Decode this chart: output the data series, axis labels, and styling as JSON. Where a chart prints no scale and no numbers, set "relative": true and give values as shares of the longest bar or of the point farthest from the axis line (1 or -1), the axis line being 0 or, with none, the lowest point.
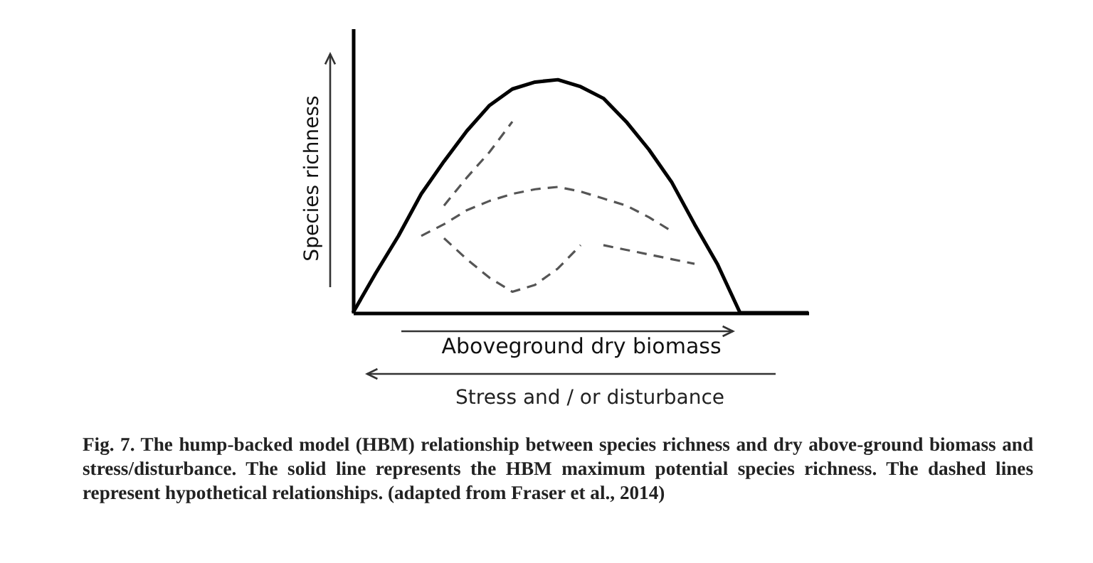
{
  "chart_data": {
    "type": "line",
    "relative": true,
    "xlabel": "Aboveground dry biomass",
    "ylabel": "Species richness",
    "categories": [
      null,
      null,
      null,
      null,
      null,
      null,
      null,
      null,
      null,
      null,
      null,
      null,
      null,
      null,
      null,
      null,
      null,
      null,
      null,
      null,
      null
    ],
    "series": [
      {
        "color": "#000000",
        "line_style": "solid",
        "values": [
          0,
          0.17,
          0.33,
          0.51,
          0.65,
          0.78,
          0.89,
          0.96,
          0.99,
          1,
          0.97,
          0.92,
          0.82,
          0.7,
          0.56,
          0.38,
          0.21,
          0,
          0,
          0,
          0
        ]
      },
      {
        "color": "#555555",
        "line_style": "dashed",
        "values": [
          null,
          null,
          null,
          null,
          0.46,
          0.58,
          0.69,
          0.82,
          null,
          null,
          null,
          null,
          null,
          null,
          null,
          null,
          null,
          null,
          null,
          null,
          null
        ]
      },
      {
        "color": "#555555",
        "line_style": "dashed",
        "values": [
          null,
          null,
          null,
          0.33,
          0.38,
          0.44,
          0.48,
          0.51,
          0.53,
          0.54,
          0.52,
          0.49,
          0.46,
          0.41,
          0.35,
          null,
          null,
          null,
          null,
          null,
          null
        ]
      },
      {
        "color": "#555555",
        "line_style": "dashed",
        "values": [
          null,
          null,
          null,
          null,
          0.32,
          0.23,
          0.15,
          0.09,
          0.12,
          0.19,
          0.29,
          null,
          null,
          null,
          null,
          null,
          null,
          null,
          null,
          null,
          null
        ]
      },
      {
        "color": "#555555",
        "line_style": "dashed",
        "values": [
          null,
          null,
          null,
          null,
          null,
          null,
          null,
          null,
          null,
          null,
          null,
          0.29,
          0.27,
          0.25,
          0.23,
          0.21,
          null,
          null,
          null,
          null,
          null
        ]
      }
    ],
    "annotations": [
      "Stress and / or disturbance",
      "Fig. 7. The hump-backed model (HBM) relationship between species richness and dry above-ground biomass and stress/disturbance. The solid line represents the HBM maximum potential species richness. The dashed lines represent hypothetical relationships. (adapted from Fraser et al., 2014)"
    ]
  }
}
